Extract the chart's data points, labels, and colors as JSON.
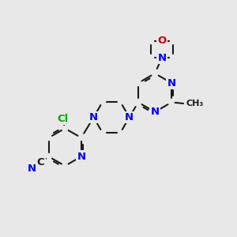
{
  "background_color": "#e8e8e8",
  "bond_color": "#1a1a1a",
  "bond_width": 1.5,
  "atom_colors": {
    "N": "#0000ee",
    "O": "#cc0000",
    "Cl": "#00aa00",
    "C": "#1a1a1a"
  },
  "font_size": 9.5,
  "font_size_methyl": 8.0
}
